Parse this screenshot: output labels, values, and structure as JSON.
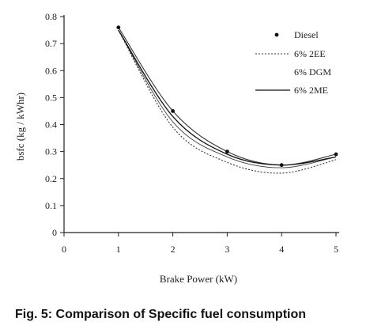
{
  "caption": "Fig. 5: Comparison of Specific fuel consumption",
  "chart_data": {
    "type": "line",
    "xlabel": "Brake Power (kW)",
    "ylabel": "bsfc (kg / kWhr)",
    "xlim": [
      0,
      5
    ],
    "ylim": [
      0,
      0.8
    ],
    "xticks": [
      0,
      1,
      2,
      3,
      4,
      5
    ],
    "yticks": [
      0,
      0.1,
      0.2,
      0.3,
      0.4,
      0.5,
      0.6,
      0.7,
      0.8
    ],
    "ytick_labels": [
      "0",
      "0.1",
      "0.2",
      "0.3",
      "0.4",
      "0.5",
      "0.6",
      "0.7",
      "0.8"
    ],
    "legend_position": "top-right",
    "grid": false,
    "series": [
      {
        "name": "Diesel",
        "style": "markers",
        "x": [
          1,
          2,
          3,
          4,
          5
        ],
        "y": [
          0.76,
          0.45,
          0.3,
          0.25,
          0.29
        ]
      },
      {
        "name": "6% 2EE",
        "style": "dotted",
        "x": [
          1,
          2,
          3,
          4,
          5
        ],
        "y": [
          0.75,
          0.39,
          0.26,
          0.22,
          0.27
        ]
      },
      {
        "name": "6% DGM",
        "style": "thin",
        "x": [
          1,
          2,
          3,
          4,
          5
        ],
        "y": [
          0.75,
          0.41,
          0.28,
          0.24,
          0.28
        ]
      },
      {
        "name": "6% 2ME",
        "style": "solid",
        "x": [
          1,
          2,
          3,
          4,
          5
        ],
        "y": [
          0.75,
          0.43,
          0.29,
          0.25,
          0.28
        ]
      }
    ]
  }
}
